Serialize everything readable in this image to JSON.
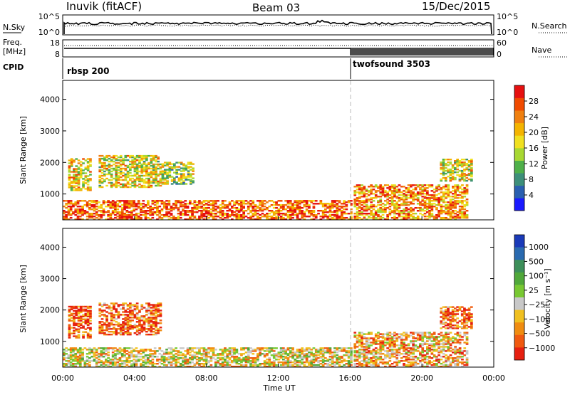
{
  "header": {
    "station": "Inuvik (fitACF)",
    "beam": "Beam 03",
    "date": "15/Dec/2015"
  },
  "strip": {
    "nsky_label": "N.Sky",
    "nsky_ticks": [
      "10^5",
      "10^0"
    ],
    "nsearch_label": "N.Search",
    "nsearch_ticks": [
      "10^5",
      "10^0"
    ],
    "freq_label": "Freq.",
    "freq_unit": "[MHz]",
    "freq_ticks": [
      "18",
      "8"
    ],
    "nave_label": "Nave",
    "nave_ticks": [
      "60",
      "0"
    ],
    "cpid_label": "CPID",
    "cpid_segments": [
      {
        "name": "rbsp 200",
        "start_hour": 0,
        "end_hour": 16
      },
      {
        "name": "twofsound 3503",
        "start_hour": 16,
        "end_hour": 24
      }
    ]
  },
  "chart_data": [
    {
      "type": "heatmap",
      "ylabel": "Slant Range [km]",
      "xlabel": "",
      "xlim": [
        0,
        24
      ],
      "ylim": [
        180,
        4600
      ],
      "y_ticks": [
        "1000",
        "2000",
        "3000",
        "4000"
      ],
      "x_ticks": [
        "00:00",
        "04:00",
        "08:00",
        "12:00",
        "16:00",
        "20:00",
        "00:00"
      ],
      "colorbar": {
        "label": "Power [dB]",
        "ticks": [
          "4",
          "8",
          "12",
          "16",
          "20",
          "24",
          "28"
        ],
        "colors": [
          "#1a1aff",
          "#2a5fb0",
          "#3d8f7a",
          "#4fb04a",
          "#a8d832",
          "#f0e020",
          "#f4b400",
          "#f08010",
          "#f04a00",
          "#e61010"
        ]
      },
      "regions": [
        {
          "t0": 0.0,
          "t1": 16.0,
          "r0": 180,
          "r1": 800,
          "level": 0.82
        },
        {
          "t0": 0.3,
          "t1": 1.5,
          "r0": 1100,
          "r1": 2100,
          "level": 0.6
        },
        {
          "t0": 2.0,
          "t1": 5.5,
          "r0": 1200,
          "r1": 2200,
          "level": 0.55
        },
        {
          "t0": 5.5,
          "t1": 7.3,
          "r0": 1300,
          "r1": 2000,
          "level": 0.45
        },
        {
          "t0": 16.2,
          "t1": 22.5,
          "r0": 180,
          "r1": 1300,
          "level": 0.72
        },
        {
          "t0": 21.0,
          "t1": 22.7,
          "r0": 1400,
          "r1": 2100,
          "level": 0.55
        }
      ]
    },
    {
      "type": "heatmap",
      "ylabel": "Slant Range [km]",
      "xlabel": "Time UT",
      "xlim": [
        0,
        24
      ],
      "ylim": [
        180,
        4600
      ],
      "y_ticks": [
        "1000",
        "2000",
        "3000",
        "4000"
      ],
      "x_ticks": [
        "00:00",
        "04:00",
        "08:00",
        "12:00",
        "16:00",
        "20:00",
        "00:00"
      ],
      "colorbar": {
        "label": "Velocity [m s⁻¹]",
        "ticks": [
          "1000",
          "500",
          "100",
          "25",
          "−25",
          "−100",
          "−500",
          "−1000"
        ],
        "colors": [
          "#1a3ab8",
          "#2a6ab0",
          "#3d8f5a",
          "#50a83a",
          "#78c832",
          "#c8c8c8",
          "#f0c020",
          "#f08c10",
          "#f05a10",
          "#e62010"
        ]
      },
      "regions": [
        {
          "t0": 0.0,
          "t1": 16.0,
          "r0": 180,
          "r1": 800,
          "level": 0.6
        },
        {
          "t0": 0.3,
          "t1": 1.5,
          "r0": 1100,
          "r1": 2100,
          "level": 0.9
        },
        {
          "t0": 2.0,
          "t1": 5.5,
          "r0": 1200,
          "r1": 2200,
          "level": 0.85
        },
        {
          "t0": 16.2,
          "t1": 22.5,
          "r0": 180,
          "r1": 1300,
          "level": 0.7
        },
        {
          "t0": 21.0,
          "t1": 22.7,
          "r0": 1400,
          "r1": 2100,
          "level": 0.85
        }
      ]
    }
  ]
}
